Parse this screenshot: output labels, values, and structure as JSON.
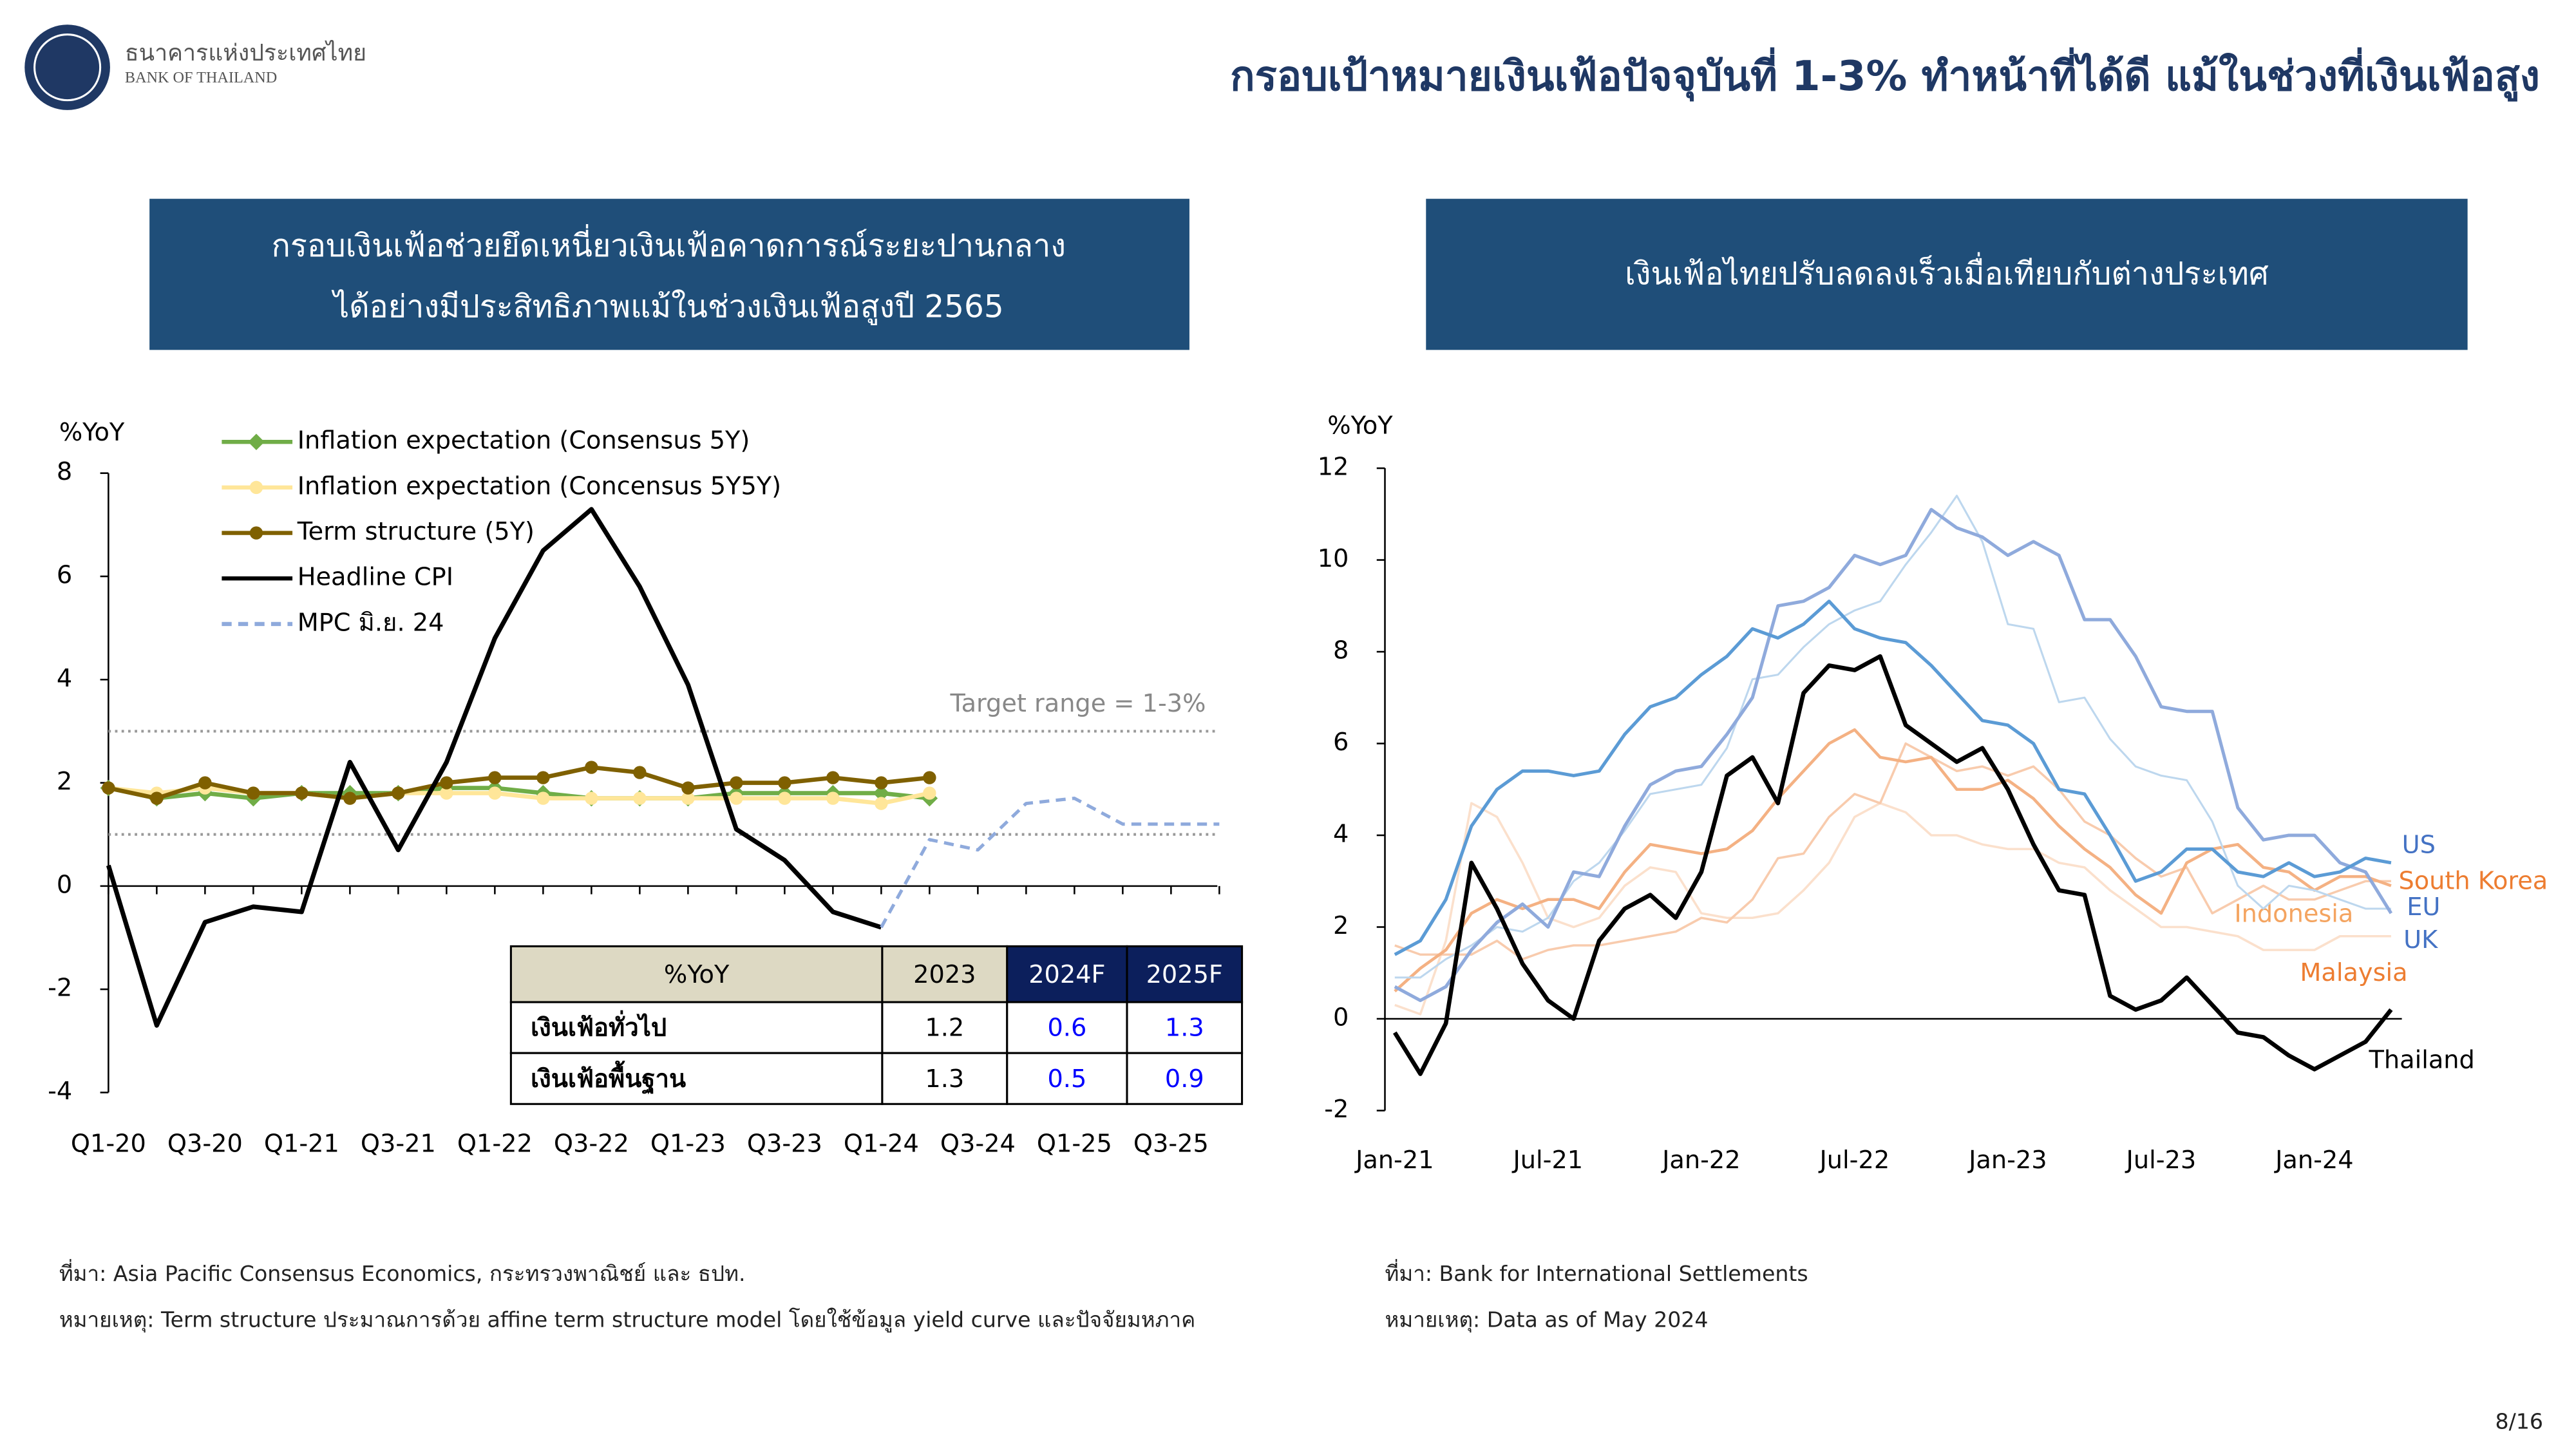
{
  "header": {
    "org_th": "ธนาคารแห่งประเทศไทย",
    "org_en": "BANK OF THAILAND",
    "title": "กรอบเป้าหมายเงินเฟ้อปัจจุบันที่ 1-3% ทำหน้าที่ได้ดี แม้ในช่วงที่เงินเฟ้อสูง"
  },
  "panels": [
    {
      "title_lines": [
        "กรอบเงินเฟ้อช่วยยึดเหนี่ยวเงินเฟ้อคาดการณ์ระยะปานกลาง",
        "ได้อย่างมีประสิทธิภาพแม้ในช่วงเงินเฟ้อสูงปี 2565"
      ]
    },
    {
      "title_lines": [
        "เงินเฟ้อไทยปรับลดลงเร็วเมื่อเทียบกับต่างประเทศ"
      ]
    }
  ],
  "chart_data": [
    {
      "type": "line",
      "y_label": "%YoY",
      "annotation": "Target range = 1-3%",
      "target_range": [
        1,
        3
      ],
      "categories": [
        "Q1-20",
        null,
        "Q3-20",
        null,
        "Q1-21",
        null,
        "Q3-21",
        null,
        "Q1-22",
        null,
        "Q3-22",
        null,
        "Q1-23",
        null,
        "Q3-23",
        null,
        "Q1-24",
        null,
        "Q3-24",
        null,
        "Q1-25",
        null,
        "Q3-25",
        null
      ],
      "ylim": [
        -4,
        8
      ],
      "yticks": [
        -4,
        -2,
        0,
        2,
        4,
        6,
        8
      ],
      "legend": "top-left",
      "series": [
        {
          "name": "Inflation expectation (Consensus 5Y)",
          "color": "#70ad47",
          "marker": "diamond",
          "values": [
            1.9,
            1.7,
            1.8,
            1.7,
            1.8,
            1.8,
            1.8,
            1.9,
            1.9,
            1.8,
            1.7,
            1.7,
            1.7,
            1.8,
            1.8,
            1.8,
            1.8,
            1.7,
            null,
            null,
            null,
            null,
            null,
            null
          ]
        },
        {
          "name": "Inflation expectation (Concensus 5Y5Y)",
          "color": "#ffe699",
          "marker": "circle",
          "values": [
            1.9,
            1.8,
            1.9,
            1.8,
            1.8,
            1.7,
            1.8,
            1.8,
            1.8,
            1.7,
            1.7,
            1.7,
            1.7,
            1.7,
            1.7,
            1.7,
            1.6,
            1.8,
            null,
            null,
            null,
            null,
            null,
            null
          ]
        },
        {
          "name": "Term structure (5Y)",
          "color": "#7f6000",
          "marker": "circle",
          "values": [
            1.9,
            1.7,
            2.0,
            1.8,
            1.8,
            1.7,
            1.8,
            2.0,
            2.1,
            2.1,
            2.3,
            2.2,
            1.9,
            2.0,
            2.0,
            2.1,
            2.0,
            2.1,
            null,
            null,
            null,
            null,
            null,
            null
          ]
        },
        {
          "name": "Headline CPI",
          "color": "#000000",
          "values": [
            0.4,
            -2.7,
            -0.7,
            -0.4,
            -0.5,
            2.4,
            0.7,
            2.4,
            4.8,
            6.5,
            7.3,
            5.8,
            3.9,
            1.1,
            0.5,
            -0.5,
            -0.8,
            null,
            null,
            null,
            null,
            null,
            null,
            null
          ]
        },
        {
          "name": "MPC มิ.ย. 24",
          "color": "#8faadc",
          "dash": true,
          "values": [
            null,
            null,
            null,
            null,
            null,
            null,
            null,
            null,
            null,
            null,
            null,
            null,
            null,
            null,
            null,
            null,
            -0.8,
            0.9,
            0.7,
            1.6,
            1.7,
            1.2,
            1.2,
            1.2
          ]
        }
      ]
    },
    {
      "type": "line",
      "y_label": "%YoY",
      "categories": [
        "Jan-21",
        null,
        null,
        null,
        null,
        null,
        "Jul-21",
        null,
        null,
        null,
        null,
        null,
        "Jan-22",
        null,
        null,
        null,
        null,
        null,
        "Jul-22",
        null,
        null,
        null,
        null,
        null,
        "Jan-23",
        null,
        null,
        null,
        null,
        null,
        "Jul-23",
        null,
        null,
        null,
        null,
        null,
        "Jan-24",
        null,
        null,
        null
      ],
      "ylim": [
        -2,
        12
      ],
      "yticks": [
        -2,
        0,
        2,
        4,
        6,
        8,
        10,
        12
      ],
      "series": [
        {
          "name": "Malaysia",
          "color": "#fbe0cc",
          "values": [
            0.3,
            0.1,
            1.7,
            4.7,
            4.4,
            3.4,
            2.2,
            2.0,
            2.2,
            2.9,
            3.3,
            3.2,
            2.3,
            2.2,
            2.2,
            2.3,
            2.8,
            3.4,
            4.4,
            4.7,
            4.5,
            4.0,
            4.0,
            3.8,
            3.7,
            3.7,
            3.4,
            3.3,
            2.8,
            2.4,
            2.0,
            2.0,
            1.9,
            1.8,
            1.5,
            1.5,
            1.5,
            1.8,
            1.8,
            1.8
          ]
        },
        {
          "name": "Indonesia",
          "color": "#f8cbad",
          "values": [
            1.6,
            1.4,
            1.4,
            1.4,
            1.7,
            1.3,
            1.5,
            1.6,
            1.6,
            1.7,
            1.8,
            1.9,
            2.2,
            2.1,
            2.6,
            3.5,
            3.6,
            4.4,
            4.9,
            4.7,
            6.0,
            5.7,
            5.4,
            5.5,
            5.3,
            5.5,
            5.0,
            4.3,
            4.0,
            3.5,
            3.1,
            3.3,
            2.3,
            2.6,
            2.9,
            2.6,
            2.6,
            2.8,
            3.0,
            3.0
          ]
        },
        {
          "name": "South Korea",
          "color": "#f4b183",
          "values": [
            0.6,
            1.1,
            1.5,
            2.3,
            2.6,
            2.4,
            2.6,
            2.6,
            2.4,
            3.2,
            3.8,
            3.7,
            3.6,
            3.7,
            4.1,
            4.8,
            5.4,
            6.0,
            6.3,
            5.7,
            5.6,
            5.7,
            5.0,
            5.0,
            5.2,
            4.8,
            4.2,
            3.7,
            3.3,
            2.7,
            2.3,
            3.4,
            3.7,
            3.8,
            3.3,
            3.2,
            2.8,
            3.1,
            3.1,
            2.9
          ]
        },
        {
          "name": "EU",
          "color": "#bdd7ee",
          "values": [
            0.9,
            0.9,
            1.3,
            1.6,
            2.0,
            1.9,
            2.2,
            3.0,
            3.4,
            4.1,
            4.9,
            5.0,
            5.1,
            5.9,
            7.4,
            7.5,
            8.1,
            8.6,
            8.9,
            9.1,
            9.9,
            10.6,
            11.4,
            10.4,
            8.6,
            8.5,
            6.9,
            7.0,
            6.1,
            5.5,
            5.3,
            5.2,
            4.3,
            2.9,
            2.4,
            2.9,
            2.8,
            2.6,
            2.4,
            2.4
          ]
        },
        {
          "name": "UK",
          "color": "#8faadc",
          "values": [
            0.7,
            0.4,
            0.7,
            1.5,
            2.1,
            2.5,
            2.0,
            3.2,
            3.1,
            4.2,
            5.1,
            5.4,
            5.5,
            6.2,
            7.0,
            9.0,
            9.1,
            9.4,
            10.1,
            9.9,
            10.1,
            11.1,
            10.7,
            10.5,
            10.1,
            10.4,
            10.1,
            8.7,
            8.7,
            7.9,
            6.8,
            6.7,
            6.7,
            4.6,
            3.9,
            4.0,
            4.0,
            3.4,
            3.2,
            2.3
          ]
        },
        {
          "name": "US",
          "color": "#5b9bd5",
          "values": [
            1.4,
            1.7,
            2.6,
            4.2,
            5.0,
            5.4,
            5.4,
            5.3,
            5.4,
            6.2,
            6.8,
            7.0,
            7.5,
            7.9,
            8.5,
            8.3,
            8.6,
            9.1,
            8.5,
            8.3,
            8.2,
            7.7,
            7.1,
            6.5,
            6.4,
            6.0,
            5.0,
            4.9,
            4.0,
            3.0,
            3.2,
            3.7,
            3.7,
            3.2,
            3.1,
            3.4,
            3.1,
            3.2,
            3.5,
            3.4
          ]
        },
        {
          "name": "Thailand",
          "color": "#000000",
          "values": [
            -0.3,
            -1.2,
            -0.1,
            3.4,
            2.4,
            1.2,
            0.4,
            0.0,
            1.7,
            2.4,
            2.7,
            2.2,
            3.2,
            5.3,
            5.7,
            4.7,
            7.1,
            7.7,
            7.6,
            7.9,
            6.4,
            6.0,
            5.6,
            5.9,
            5.0,
            3.8,
            2.8,
            2.7,
            0.5,
            0.2,
            0.4,
            0.9,
            0.3,
            -0.3,
            -0.4,
            -0.8,
            -1.1,
            -0.8,
            -0.5,
            0.2
          ]
        }
      ]
    }
  ],
  "table": {
    "header": [
      "%YoY",
      "2023",
      "2024F",
      "2025F"
    ],
    "rows": [
      [
        "เงินเฟ้อทั่วไป",
        1.2,
        0.6,
        1.3
      ],
      [
        "เงินเฟ้อพื้นฐาน",
        1.3,
        0.5,
        0.9
      ]
    ]
  },
  "notes": [
    {
      "source": "ที่มา: Asia Pacific Consensus Economics, กระทรวงพาณิชย์ และ ธปท.",
      "note": "หมายเหตุ: Term structure ประมาณการด้วย affine term structure model โดยใช้ข้อมูล yield curve และปัจจัยมหภาค"
    },
    {
      "source": "ที่มา: Bank for International Settlements",
      "note": "หมายเหตุ: Data as of May 2024"
    }
  ],
  "page_number": "8/16"
}
